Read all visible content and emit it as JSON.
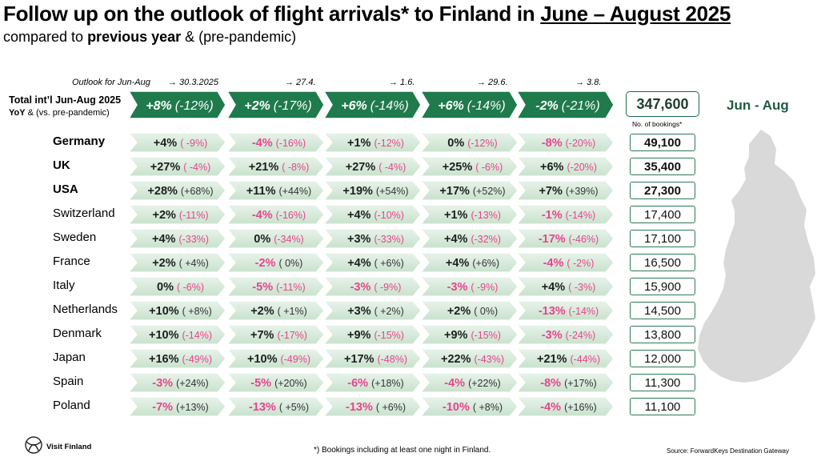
{
  "page": {
    "title_main": "Follow up on the outlook of flight arrivals* to Finland in ",
    "title_period": "June – August 2025",
    "subtitle_pre": "compared to ",
    "subtitle_bold": "previous year",
    "subtitle_post": " & (pre-pandemic)",
    "outlook_label": "Outlook for Jun-Aug",
    "total_label_line1": "Total int’l Jun-Aug 2025",
    "total_label_line2_bold": "YoY",
    "total_label_line2_rest": " & (vs. pre-pandemic)",
    "region_label": "Jun - Aug",
    "total_bookings": "347,600",
    "total_bookings_label": "No. of bookings*",
    "footnote": "*) Bookings including at least one night in Finland.",
    "source": "Source: ForwardKeys Destination Gateway",
    "logo_text": "Visit Finland"
  },
  "chart_data": {
    "type": "table",
    "columns": [
      "→ 30.3.2025",
      "→ 27.4.",
      "→ 1.6.",
      "→ 29.6.",
      "→ 3.8."
    ],
    "total": [
      {
        "yoy": "+8%",
        "pre": "(-12%)"
      },
      {
        "yoy": "+2%",
        "pre": "(-17%)"
      },
      {
        "yoy": "+6%",
        "pre": "(-14%)"
      },
      {
        "yoy": "+6%",
        "pre": "(-14%)"
      },
      {
        "yoy": "-2%",
        "pre": "(-21%)"
      }
    ],
    "rows": [
      {
        "country": "Germany",
        "bold": true,
        "bookings": "49,100",
        "cells": [
          [
            "+4%",
            "( -9%)"
          ],
          [
            "-4%",
            "(-16%)"
          ],
          [
            "+1%",
            "(-12%)"
          ],
          [
            "0%",
            "(-12%)"
          ],
          [
            "-8%",
            "(-20%)"
          ]
        ]
      },
      {
        "country": "UK",
        "bold": true,
        "bookings": "35,400",
        "cells": [
          [
            "+27%",
            "( -4%)"
          ],
          [
            "+21%",
            "( -8%)"
          ],
          [
            "+27%",
            "( -4%)"
          ],
          [
            "+25%",
            "( -6%)"
          ],
          [
            "+6%",
            "(-20%)"
          ]
        ]
      },
      {
        "country": "USA",
        "bold": true,
        "bookings": "27,300",
        "cells": [
          [
            "+28%",
            "(+68%)"
          ],
          [
            "+11%",
            "(+44%)"
          ],
          [
            "+19%",
            "(+54%)"
          ],
          [
            "+17%",
            "(+52%)"
          ],
          [
            "+7%",
            "(+39%)"
          ]
        ]
      },
      {
        "country": "Switzerland",
        "bold": false,
        "bookings": "17,400",
        "cells": [
          [
            "+2%",
            "(-11%)"
          ],
          [
            "-4%",
            "(-16%)"
          ],
          [
            "+4%",
            "(-10%)"
          ],
          [
            "+1%",
            "(-13%)"
          ],
          [
            "-1%",
            "(-14%)"
          ]
        ]
      },
      {
        "country": "Sweden",
        "bold": false,
        "bookings": "17,100",
        "cells": [
          [
            "+4%",
            "(-33%)"
          ],
          [
            "0%",
            "(-34%)"
          ],
          [
            "+3%",
            "(-33%)"
          ],
          [
            "+4%",
            "(-32%)"
          ],
          [
            "-17%",
            "(-46%)"
          ]
        ]
      },
      {
        "country": "France",
        "bold": false,
        "bookings": "16,500",
        "cells": [
          [
            "+2%",
            "( +4%)"
          ],
          [
            "-2%",
            "(  0%)"
          ],
          [
            "+4%",
            "( +6%)"
          ],
          [
            "+4%",
            "(+6%)"
          ],
          [
            "-4%",
            "( -2%)"
          ]
        ]
      },
      {
        "country": "Italy",
        "bold": false,
        "bookings": "15,900",
        "cells": [
          [
            "0%",
            "( -6%)"
          ],
          [
            "-5%",
            "(-11%)"
          ],
          [
            "-3%",
            "( -9%)"
          ],
          [
            "-3%",
            "( -9%)"
          ],
          [
            "+4%",
            "( -3%)"
          ]
        ]
      },
      {
        "country": "Netherlands",
        "bold": false,
        "bookings": "14,500",
        "cells": [
          [
            "+10%",
            "( +8%)"
          ],
          [
            "+2%",
            "( +1%)"
          ],
          [
            "+3%",
            "( +2%)"
          ],
          [
            "+2%",
            "(  0%)"
          ],
          [
            "-13%",
            "(-14%)"
          ]
        ]
      },
      {
        "country": "Denmark",
        "bold": false,
        "bookings": "13,800",
        "cells": [
          [
            "+10%",
            "(-14%)"
          ],
          [
            "+7%",
            "(-17%)"
          ],
          [
            "+9%",
            "(-15%)"
          ],
          [
            "+9%",
            "(-15%)"
          ],
          [
            "-3%",
            "(-24%)"
          ]
        ]
      },
      {
        "country": "Japan",
        "bold": false,
        "bookings": "12,000",
        "cells": [
          [
            "+16%",
            "(-49%)"
          ],
          [
            "+10%",
            "(-49%)"
          ],
          [
            "+17%",
            "(-48%)"
          ],
          [
            "+22%",
            "(-43%)"
          ],
          [
            "+21%",
            "(-44%)"
          ]
        ]
      },
      {
        "country": "Spain",
        "bold": false,
        "bookings": "11,300",
        "cells": [
          [
            "-3%",
            "(+24%)"
          ],
          [
            "-5%",
            "(+20%)"
          ],
          [
            "-6%",
            "(+18%)"
          ],
          [
            "-4%",
            "(+22%)"
          ],
          [
            "-8%",
            "(+17%)"
          ]
        ]
      },
      {
        "country": "Poland",
        "bold": false,
        "bookings": "11,100",
        "cells": [
          [
            "-7%",
            "(+13%)"
          ],
          [
            "-13%",
            "( +5%)"
          ],
          [
            "-13%",
            "( +6%)"
          ],
          [
            "-10%",
            "( +8%)"
          ],
          [
            "-4%",
            "(+16%)"
          ]
        ]
      }
    ],
    "colors": {
      "header_arrow": "#1f7a4c",
      "row_arrow_light": "#e8f3ea",
      "row_arrow_mid": "#c8e2cd",
      "positive_text": "#1e1e1e",
      "negative_text": "#e8448f",
      "box_border": "#2d7a54",
      "map_fill": "#d9d9d9"
    }
  }
}
